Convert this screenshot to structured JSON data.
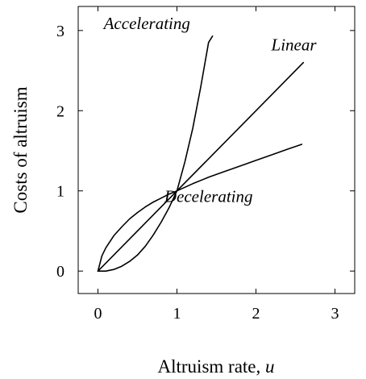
{
  "chart_data": {
    "type": "line",
    "xlabel": "Altruism rate, ",
    "xlabel_var": "u",
    "ylabel": "Costs of altruism",
    "xlim": [
      -0.25,
      3.25
    ],
    "ylim": [
      -0.28,
      3.3
    ],
    "xticks": [
      0,
      1,
      2,
      3
    ],
    "yticks": [
      0,
      1,
      2,
      3
    ],
    "grid": false,
    "series": [
      {
        "name": "Accelerating",
        "x": [
          0,
          0.1,
          0.2,
          0.3,
          0.4,
          0.5,
          0.6,
          0.7,
          0.8,
          0.9,
          1.0,
          1.1,
          1.2,
          1.3,
          1.4,
          1.45
        ],
        "y": [
          0,
          0.0,
          0.02,
          0.06,
          0.12,
          0.2,
          0.31,
          0.45,
          0.61,
          0.79,
          1.0,
          1.36,
          1.78,
          2.29,
          2.85,
          2.93
        ]
      },
      {
        "name": "Linear",
        "x": [
          0,
          1,
          2,
          2.6
        ],
        "y": [
          0,
          1,
          2,
          2.6
        ]
      },
      {
        "name": "Decelerating",
        "x": [
          0,
          0.05,
          0.1,
          0.2,
          0.3,
          0.4,
          0.5,
          0.6,
          0.7,
          0.8,
          0.9,
          1.0,
          1.2,
          1.4,
          1.6,
          1.8,
          2.0,
          2.2,
          2.4,
          2.58
        ],
        "y": [
          0,
          0.19,
          0.29,
          0.44,
          0.55,
          0.65,
          0.73,
          0.8,
          0.86,
          0.91,
          0.96,
          1.0,
          1.09,
          1.17,
          1.24,
          1.31,
          1.38,
          1.45,
          1.52,
          1.58
        ]
      }
    ],
    "annotations": [
      {
        "text": "Accelerating",
        "x": 0.62,
        "y": 3.02
      },
      {
        "text": "Linear",
        "x": 2.48,
        "y": 2.75
      },
      {
        "text": "Decelerating",
        "x": 1.4,
        "y": 0.86
      }
    ]
  }
}
